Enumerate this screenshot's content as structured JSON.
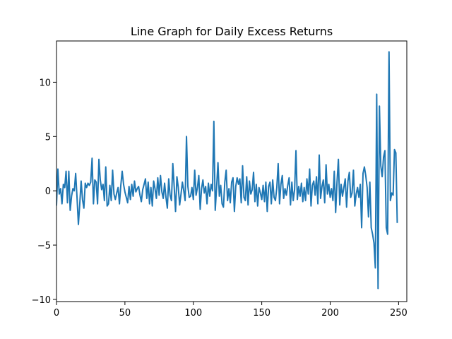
{
  "colors": {
    "series": "#1f77b4",
    "axis": "#000000",
    "background": "#ffffff"
  },
  "chart_data": {
    "type": "line",
    "title": "Line Graph for Daily Excess Returns",
    "xlabel": "",
    "ylabel": "",
    "xlim": [
      0,
      256
    ],
    "ylim": [
      -10.2,
      13.8
    ],
    "x_ticks": [
      0,
      50,
      100,
      150,
      200,
      250
    ],
    "y_ticks": [
      -10,
      -5,
      0,
      5,
      10
    ],
    "x_tick_labels": [
      "0",
      "50",
      "100",
      "150",
      "200",
      "250"
    ],
    "y_tick_labels": [
      "−10",
      "−5",
      "0",
      "5",
      "10"
    ],
    "grid": false,
    "legend": "none",
    "series": [
      {
        "values": [
          -1.3,
          2.0,
          -0.3,
          0.2,
          -1.2,
          0.6,
          0.3,
          1.8,
          -1.1,
          1.8,
          -1.8,
          -0.5,
          0.2,
          0.0,
          1.6,
          -0.6,
          -3.1,
          -1.2,
          0.9,
          -0.8,
          -1.6,
          0.7,
          0.3,
          0.7,
          0.5,
          0.8,
          3.0,
          -1.2,
          1.0,
          0.8,
          -1.2,
          2.9,
          1.0,
          0.1,
          0.6,
          -0.9,
          2.2,
          -1.4,
          -1.2,
          0.5,
          -0.9,
          1.9,
          -0.3,
          -0.8,
          -0.2,
          0.3,
          -1.2,
          0.5,
          1.8,
          0.6,
          -0.1,
          -0.6,
          -1.1,
          0.4,
          -0.8,
          0.6,
          -0.5,
          0.9,
          -0.1,
          0.2,
          0.4,
          -0.4,
          -1.0,
          0.1,
          0.6,
          1.1,
          -0.7,
          0.8,
          -1.2,
          0.3,
          -1.4,
          0.9,
          0.2,
          -0.7,
          1.2,
          -0.4,
          1.4,
          -0.1,
          -0.7,
          0.7,
          -0.6,
          -1.6,
          1.1,
          -0.4,
          -0.9,
          2.5,
          0.4,
          -1.9,
          1.3,
          0.3,
          -1.3,
          -0.3,
          0.8,
          0.0,
          -0.9,
          5.0,
          0.4,
          -0.6,
          -0.5,
          0.3,
          -0.8,
          1.9,
          -0.4,
          0.3,
          1.4,
          -1.7,
          0.2,
          1.0,
          -0.2,
          0.4,
          -1.2,
          0.7,
          -0.5,
          0.6,
          0.0,
          6.4,
          -1.8,
          0.3,
          2.6,
          -0.5,
          0.5,
          -1.2,
          -1.5,
          0.8,
          1.9,
          -0.9,
          0.2,
          -1.1,
          0.8,
          1.2,
          -1.9,
          0.4,
          1.2,
          0.6,
          1.1,
          -1.1,
          2.3,
          -0.6,
          -0.9,
          1.3,
          -1.3,
          0.9,
          -0.3,
          0.1,
          1.7,
          -1.0,
          0.6,
          -1.4,
          0.3,
          -0.2,
          -0.8,
          0.5,
          -1.0,
          0.8,
          -1.9,
          0.4,
          0.8,
          -1.2,
          1.0,
          -0.6,
          -0.9,
          0.3,
          2.5,
          -1.2,
          0.6,
          1.4,
          -0.7,
          0.2,
          -0.4,
          0.5,
          1.2,
          -1.3,
          0.8,
          -0.9,
          0.1,
          3.7,
          -0.8,
          0.4,
          -0.5,
          0.7,
          -1.0,
          0.3,
          -0.9,
          1.1,
          -0.3,
          2.0,
          -1.4,
          0.5,
          0.9,
          -0.4,
          1.3,
          -1.2,
          3.3,
          -0.7,
          0.4,
          1.0,
          -1.1,
          2.4,
          -0.3,
          0.6,
          -0.6,
          0.2,
          -0.9,
          1.8,
          -2.0,
          0.8,
          2.9,
          -1.3,
          0.6,
          -0.5,
          0.3,
          1.1,
          -1.5,
          0.9,
          1.7,
          -0.6,
          -0.2,
          1.9,
          -1.4,
          -0.3,
          0.3,
          -0.6,
          0.6,
          -3.4,
          1.6,
          2.2,
          1.4,
          0.3,
          -2.4,
          0.8,
          -3.4,
          -4.0,
          -4.8,
          -7.1,
          8.9,
          -9.0,
          7.8,
          2.3,
          1.3,
          3.1,
          3.7,
          -3.4,
          -4.0,
          12.8,
          -0.9,
          -0.2,
          -0.4,
          3.8,
          3.5,
          -2.9
        ]
      }
    ]
  }
}
